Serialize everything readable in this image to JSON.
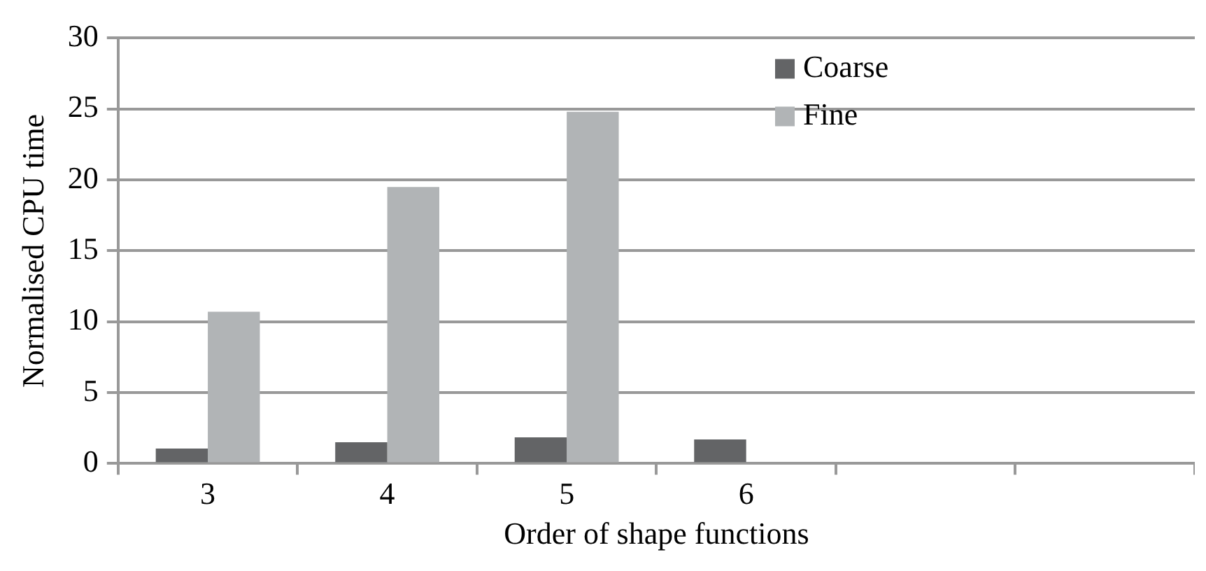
{
  "chart_data": {
    "type": "bar",
    "xlabel": "Order of shape functions",
    "ylabel": "Normalised CPU time",
    "categories": [
      "3",
      "4",
      "5",
      "6",
      null,
      null
    ],
    "series": [
      {
        "name": "Coarse",
        "color": "#636466",
        "values": [
          1.05,
          1.5,
          1.85,
          1.7,
          null,
          null
        ]
      },
      {
        "name": "Fine",
        "color": "#b1b4b6",
        "values": [
          10.7,
          19.5,
          24.8,
          null,
          null,
          null
        ]
      }
    ],
    "ylim": [
      0,
      30
    ],
    "yticks": [
      0,
      5,
      10,
      15,
      20,
      25,
      30
    ],
    "grid": "y",
    "legend": "top right"
  }
}
